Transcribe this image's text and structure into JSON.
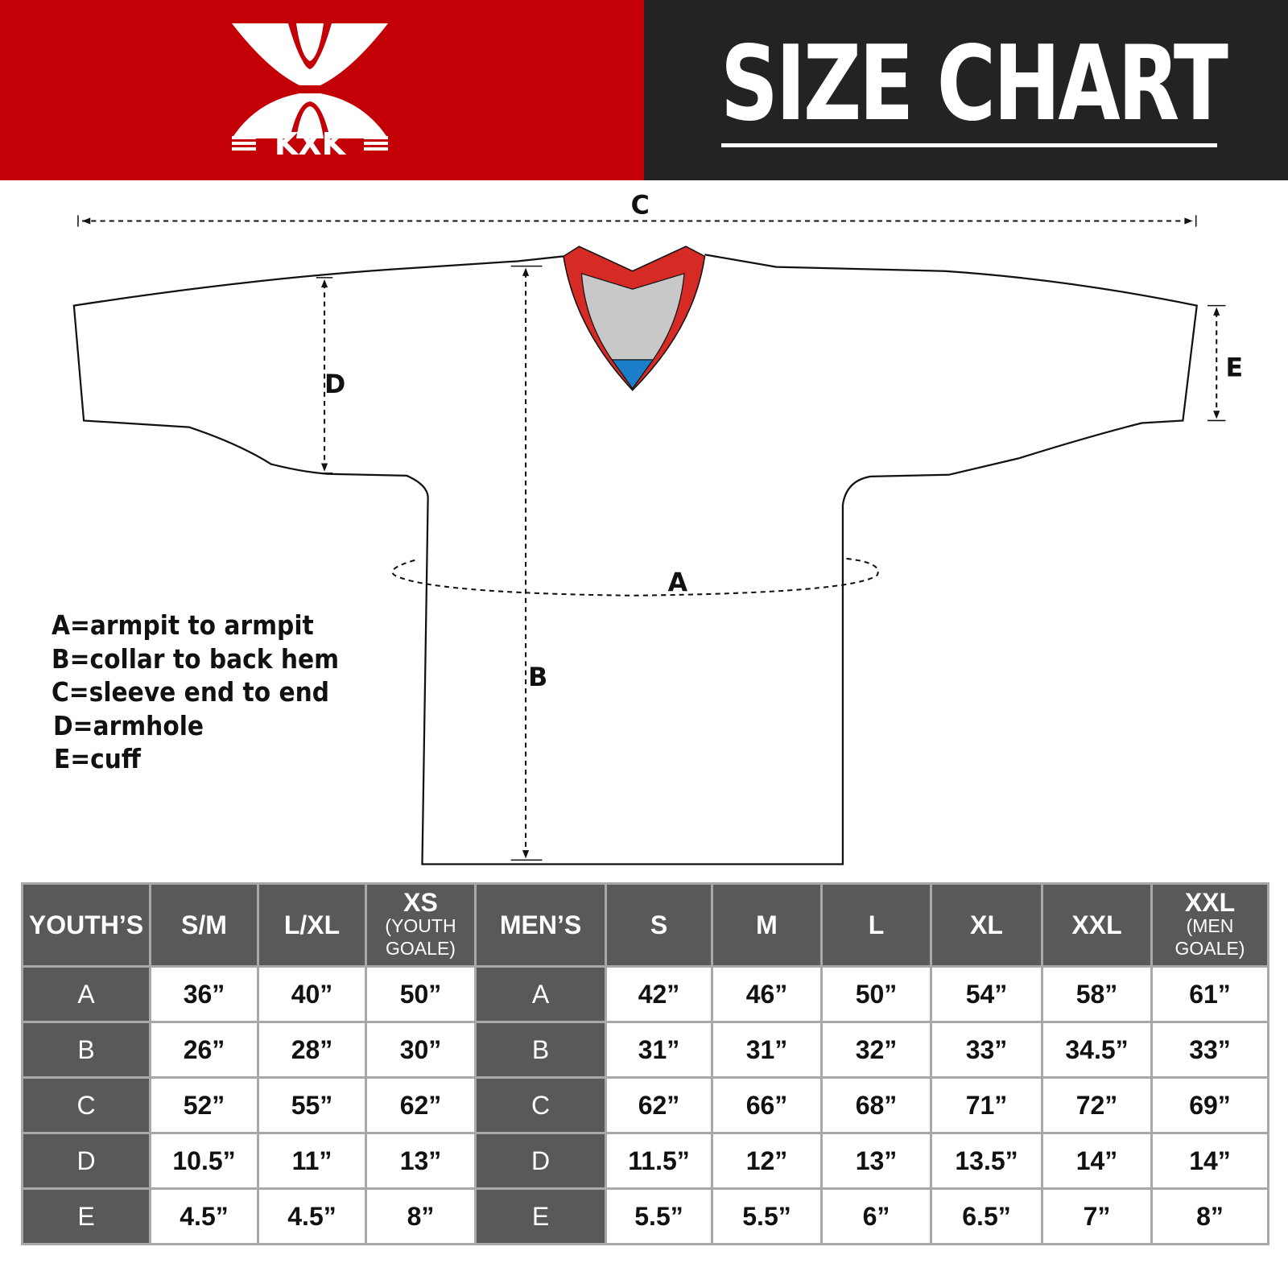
{
  "header": {
    "brand": "KXK",
    "title": "SIZE CHART",
    "brand_color": "#c30006",
    "dark_color": "#232323"
  },
  "diagram": {
    "labels": {
      "A": "A",
      "B": "B",
      "C": "C",
      "D": "D",
      "E": "E"
    },
    "collar_colors": {
      "trim": "#d62a24",
      "inner": "#c8c8c8",
      "tip": "#1a7fc8"
    }
  },
  "legend": [
    "A=armpit to armpit",
    "B=collar to back hem",
    "C=sleeve end to end",
    "D=armhole",
    "E=cuff"
  ],
  "table": {
    "headers": [
      {
        "main": "YOUTH’S"
      },
      {
        "main": "S/M"
      },
      {
        "main": "L/XL"
      },
      {
        "main": "XS",
        "sub": "(YOUTH GOALE)"
      },
      {
        "main": "MEN’S"
      },
      {
        "main": "S"
      },
      {
        "main": "M"
      },
      {
        "main": "L"
      },
      {
        "main": "XL"
      },
      {
        "main": "XXL"
      },
      {
        "main": "XXL",
        "sub": "(MEN GOALE)"
      }
    ],
    "rows": [
      [
        "A",
        "36”",
        "40”",
        "50”",
        "A",
        "42”",
        "46”",
        "50”",
        "54”",
        "58”",
        "61”"
      ],
      [
        "B",
        "26”",
        "28”",
        "30”",
        "B",
        "31”",
        "31”",
        "32”",
        "33”",
        "34.5”",
        "33”"
      ],
      [
        "C",
        "52”",
        "55”",
        "62”",
        "C",
        "62”",
        "66”",
        "68”",
        "71”",
        "72”",
        "69”"
      ],
      [
        "D",
        "10.5”",
        "11”",
        "13”",
        "D",
        "11.5”",
        "12”",
        "13”",
        "13.5”",
        "14”",
        "14”"
      ],
      [
        "E",
        "4.5”",
        "4.5”",
        "8”",
        "E",
        "5.5”",
        "5.5”",
        "6”",
        "6.5”",
        "7”",
        "8”"
      ]
    ]
  }
}
